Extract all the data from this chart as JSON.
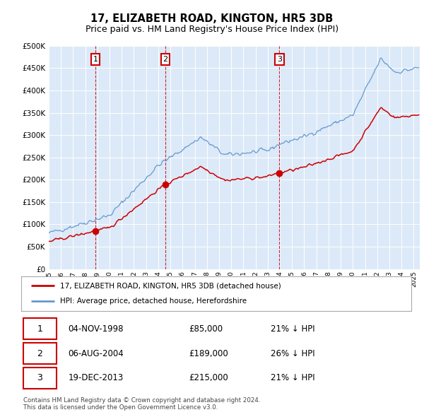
{
  "title": "17, ELIZABETH ROAD, KINGTON, HR5 3DB",
  "subtitle": "Price paid vs. HM Land Registry's House Price Index (HPI)",
  "title_fontsize": 10.5,
  "subtitle_fontsize": 9,
  "ylim": [
    0,
    500000
  ],
  "yticks": [
    0,
    50000,
    100000,
    150000,
    200000,
    250000,
    300000,
    350000,
    400000,
    450000,
    500000
  ],
  "ytick_labels": [
    "£0",
    "£50K",
    "£100K",
    "£150K",
    "£200K",
    "£250K",
    "£300K",
    "£350K",
    "£400K",
    "£450K",
    "£500K"
  ],
  "plot_bg": "#dce9f8",
  "grid_color": "#ffffff",
  "legend_label_red": "17, ELIZABETH ROAD, KINGTON, HR5 3DB (detached house)",
  "legend_label_blue": "HPI: Average price, detached house, Herefordshire",
  "transactions": [
    {
      "num": 1,
      "date": "04-NOV-1998",
      "price": "£85,000",
      "hpi": "21% ↓ HPI",
      "year": 1998.84
    },
    {
      "num": 2,
      "date": "06-AUG-2004",
      "price": "£189,000",
      "hpi": "26% ↓ HPI",
      "year": 2004.59
    },
    {
      "num": 3,
      "date": "19-DEC-2013",
      "price": "£215,000",
      "hpi": "21% ↓ HPI",
      "year": 2013.96
    }
  ],
  "transaction_prices": [
    85000,
    189000,
    215000
  ],
  "footer": "Contains HM Land Registry data © Crown copyright and database right 2024.\nThis data is licensed under the Open Government Licence v3.0.",
  "red_line_color": "#cc0000",
  "blue_line_color": "#6699cc",
  "marker_color": "#cc0000"
}
